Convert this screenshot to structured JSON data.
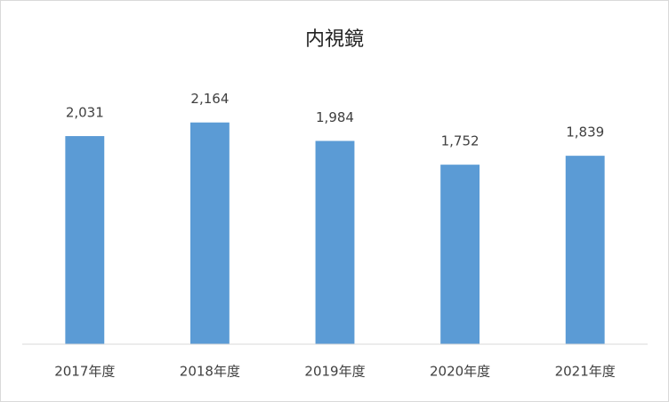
{
  "chart_data": {
    "type": "bar",
    "title": "内視鏡",
    "categories": [
      "2017年度",
      "2018年度",
      "2019年度",
      "2020年度",
      "2021年度"
    ],
    "values": [
      2031,
      2164,
      1984,
      1752,
      1839
    ],
    "value_labels": [
      "2,031",
      "2,164",
      "1,984",
      "1,752",
      "1,839"
    ],
    "color": "#5b9bd5",
    "ylim": [
      0,
      2500
    ]
  }
}
